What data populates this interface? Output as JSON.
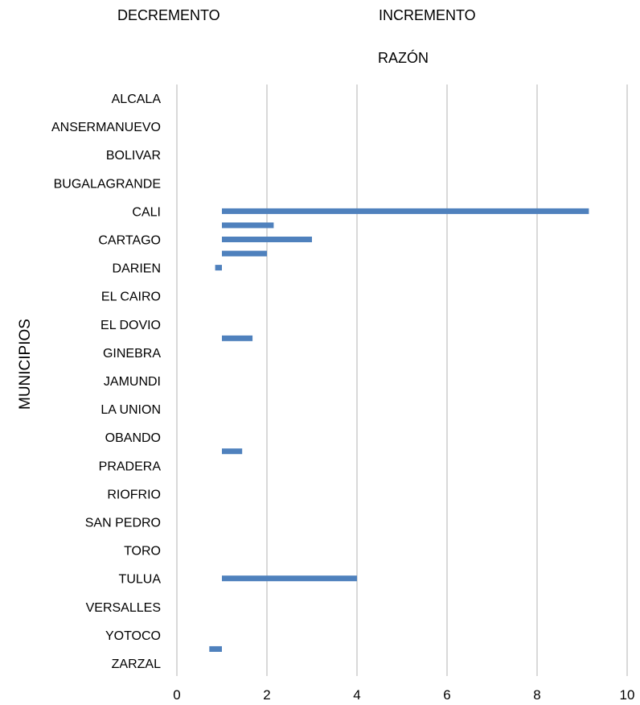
{
  "header": {
    "decrement_label": "DECREMENTO",
    "increment_label": "INCREMENTO",
    "title": "RAZÓN"
  },
  "chart_data": {
    "type": "bar",
    "orientation": "horizontal",
    "title": "RAZÓN",
    "ylabel": "MUNICIPIOS",
    "xlabel": "",
    "xlim": [
      0,
      10
    ],
    "xticks": [
      0,
      2,
      4,
      6,
      8,
      10
    ],
    "baseline": 1,
    "grid": true,
    "bar_color": "#4f81bd",
    "categories": [
      "ALCALA",
      "ANSERMANUEVO",
      "BOLIVAR",
      "BUGALAGRANDE",
      "CALI",
      "CARTAGO",
      "DARIEN",
      "EL CAIRO",
      "EL DOVIO",
      "GINEBRA",
      "JAMUNDI",
      "LA UNION",
      "OBANDO",
      "PRADERA",
      "RIOFRIO",
      "SAN PEDRO",
      "TORO",
      "TULUA",
      "VERSALLES",
      "YOTOCO",
      "ZARZAL"
    ],
    "bars": [
      {
        "position": 4.0,
        "value": 9.15
      },
      {
        "position": 4.5,
        "value": 2.15
      },
      {
        "position": 5.0,
        "value": 3.0
      },
      {
        "position": 5.5,
        "value": 2.0
      },
      {
        "position": 6.0,
        "value": 0.85
      },
      {
        "position": 8.5,
        "value": 1.68
      },
      {
        "position": 12.5,
        "value": 1.45
      },
      {
        "position": 17.0,
        "value": 4.0
      },
      {
        "position": 19.5,
        "value": 0.72
      }
    ]
  }
}
